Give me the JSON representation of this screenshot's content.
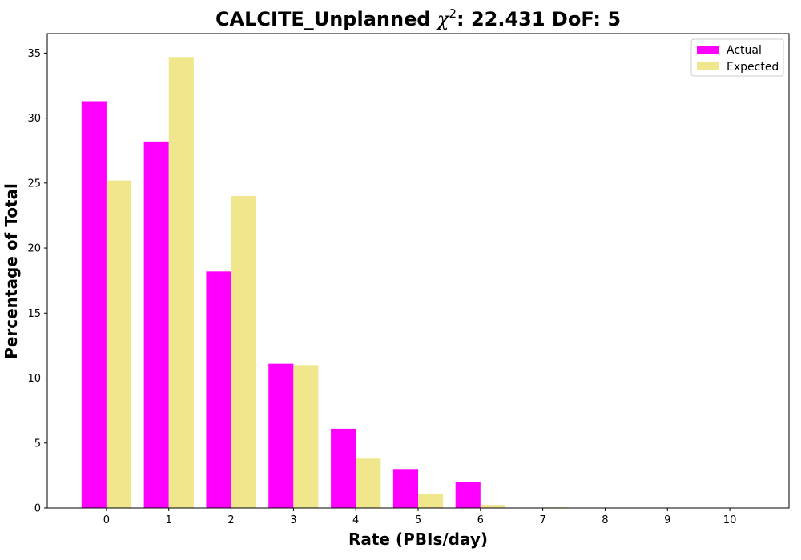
{
  "chart_data": {
    "type": "bar",
    "title_prefix": "CALCITE_Unplanned ",
    "title_chi": "χ",
    "title_sup": "2",
    "title_suffix": ": 22.431 DoF: 5",
    "xlabel": "Rate (PBIs/day)",
    "ylabel": "Percentage of Total",
    "categories": [
      "0",
      "1",
      "2",
      "3",
      "4",
      "5",
      "6",
      "7",
      "8",
      "9",
      "10"
    ],
    "series": [
      {
        "name": "Actual",
        "color": "#ff00ff",
        "values": [
          31.3,
          28.2,
          18.2,
          11.1,
          6.1,
          3.0,
          2.0,
          0,
          0,
          0,
          0
        ]
      },
      {
        "name": "Expected",
        "color": "#f0e68c",
        "values": [
          25.2,
          34.7,
          24.0,
          11.0,
          3.8,
          1.05,
          0.24,
          0.05,
          0.01,
          0,
          0
        ]
      }
    ],
    "ylim": [
      0,
      36.5
    ],
    "yticks": [
      0,
      5,
      10,
      15,
      20,
      25,
      30,
      35
    ],
    "legend_position": "top-right",
    "grid": false
  }
}
